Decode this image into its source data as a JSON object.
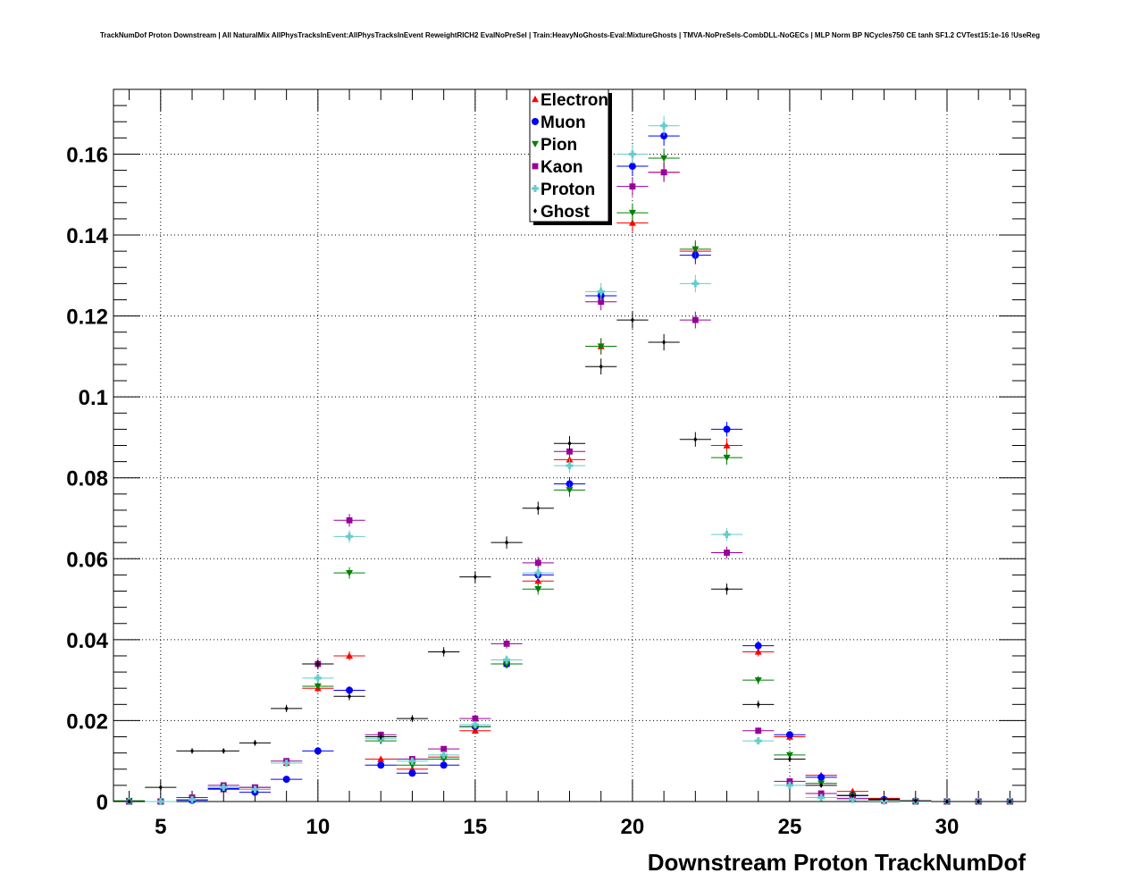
{
  "chart_data": {
    "type": "scatter",
    "title": "TrackNumDof Proton Downstream | All NaturalMix AllPhysTracksInEvent:AllPhysTracksInEvent ReweightRICH2 EvalNoPreSel | Train:HeavyNoGhosts-Eval:MixtureGhosts | TMVA-NoPreSels-CombDLL-NoGECs | MLP Norm BP NCycles750 CE tanh SF1.2 CVTest15:1e-16 !UseReg",
    "xlabel": "Downstream Proton TrackNumDof",
    "ylabel": "",
    "xlim": [
      3.5,
      32.5
    ],
    "ylim": [
      0,
      0.176
    ],
    "x_ticks": [
      5,
      10,
      15,
      20,
      25,
      30
    ],
    "x_tick_labels": [
      "5",
      "10",
      "15",
      "20",
      "25",
      "30"
    ],
    "y_ticks": [
      0,
      0.02,
      0.04,
      0.06,
      0.08,
      0.1,
      0.12,
      0.14,
      0.16
    ],
    "y_tick_labels": [
      "0",
      "0.02",
      "0.04",
      "0.06",
      "0.08",
      "0.1",
      "0.12",
      "0.14",
      "0.16"
    ],
    "grid": true,
    "legend_position": "top-center",
    "series": [
      {
        "name": "Electron",
        "color": "#ff0000",
        "marker": "triangle-up",
        "x": [
          4,
          5,
          6,
          7,
          8,
          9,
          10,
          11,
          12,
          13,
          14,
          15,
          16,
          17,
          18,
          19,
          20,
          21,
          22,
          23,
          24,
          25,
          26,
          27,
          28,
          29,
          30,
          31,
          32
        ],
        "y": [
          0,
          0,
          0.0005,
          0.003,
          0.003,
          0.0095,
          0.028,
          0.036,
          0.0105,
          0.008,
          0.011,
          0.0175,
          0.034,
          0.0545,
          0.0845,
          0.1125,
          0.143,
          0.1555,
          0.136,
          0.088,
          0.037,
          0.016,
          0.0065,
          0.0025,
          0.0008,
          0.0002,
          0,
          0,
          0
        ]
      },
      {
        "name": "Muon",
        "color": "#0000ff",
        "marker": "circle",
        "x": [
          4,
          5,
          6,
          7,
          8,
          9,
          10,
          11,
          12,
          13,
          14,
          15,
          16,
          17,
          18,
          19,
          20,
          21,
          22,
          23,
          24,
          25,
          26,
          27,
          28,
          29,
          30,
          31,
          32
        ],
        "y": [
          0,
          0,
          0.0003,
          0.0032,
          0.0023,
          0.0055,
          0.0125,
          0.0275,
          0.009,
          0.007,
          0.009,
          0.0185,
          0.034,
          0.056,
          0.0785,
          0.125,
          0.157,
          0.1645,
          0.135,
          0.092,
          0.0385,
          0.0165,
          0.006,
          0.0015,
          0.0005,
          0.0001,
          0,
          0,
          0
        ]
      },
      {
        "name": "Pion",
        "color": "#008000",
        "marker": "triangle-down",
        "x": [
          4,
          5,
          6,
          7,
          8,
          9,
          10,
          11,
          12,
          13,
          14,
          15,
          16,
          17,
          18,
          19,
          20,
          21,
          22,
          23,
          24,
          25,
          26,
          27,
          28,
          29,
          30,
          31,
          32
        ],
        "y": [
          0.0002,
          0,
          0.0005,
          0.0035,
          0.0035,
          0.0095,
          0.0285,
          0.0565,
          0.015,
          0.009,
          0.0105,
          0.0185,
          0.034,
          0.0525,
          0.077,
          0.1125,
          0.1455,
          0.159,
          0.1365,
          0.085,
          0.03,
          0.0115,
          0.0045,
          0.0015,
          0.0004,
          0.0001,
          0,
          0,
          0
        ]
      },
      {
        "name": "Kaon",
        "color": "#990099",
        "marker": "square",
        "x": [
          4,
          5,
          6,
          7,
          8,
          9,
          10,
          11,
          12,
          13,
          14,
          15,
          16,
          17,
          18,
          19,
          20,
          21,
          22,
          23,
          24,
          25,
          26,
          27,
          28,
          29,
          30,
          31,
          32
        ],
        "y": [
          0,
          0,
          0.001,
          0.004,
          0.0035,
          0.01,
          0.034,
          0.0695,
          0.0165,
          0.0105,
          0.013,
          0.0205,
          0.039,
          0.059,
          0.0865,
          0.1235,
          0.152,
          0.1555,
          0.119,
          0.0615,
          0.0175,
          0.005,
          0.002,
          0.0008,
          0.0002,
          0,
          0,
          0,
          0
        ]
      },
      {
        "name": "Proton",
        "color": "#66cccc",
        "marker": "cross",
        "x": [
          4,
          5,
          6,
          7,
          8,
          9,
          10,
          11,
          12,
          13,
          14,
          15,
          16,
          17,
          18,
          19,
          20,
          21,
          22,
          23,
          24,
          25,
          26,
          27,
          28,
          29,
          30,
          31,
          32
        ],
        "y": [
          0,
          0,
          0.0005,
          0.0035,
          0.003,
          0.0095,
          0.0305,
          0.0655,
          0.0155,
          0.01,
          0.0115,
          0.019,
          0.035,
          0.0565,
          0.083,
          0.126,
          0.16,
          0.167,
          0.128,
          0.066,
          0.015,
          0.004,
          0.001,
          0.0005,
          0.0001,
          0,
          0,
          0,
          0
        ]
      },
      {
        "name": "Ghost",
        "color": "#000000",
        "marker": "diamond",
        "x": [
          4,
          5,
          6,
          7,
          8,
          9,
          10,
          11,
          12,
          13,
          14,
          15,
          16,
          17,
          18,
          19,
          20,
          21,
          22,
          23,
          24,
          25,
          26,
          27,
          28,
          29,
          30,
          31,
          32
        ],
        "y": [
          0,
          0.0035,
          0.0125,
          0.0125,
          0.0145,
          0.023,
          0.034,
          0.026,
          0.016,
          0.0205,
          0.037,
          0.0555,
          0.064,
          0.0725,
          0.0885,
          0.1075,
          0.119,
          0.1135,
          0.0895,
          0.0525,
          0.024,
          0.0105,
          0.004,
          0.0015,
          0.0006,
          0.0002,
          0,
          0,
          0
        ]
      }
    ]
  }
}
